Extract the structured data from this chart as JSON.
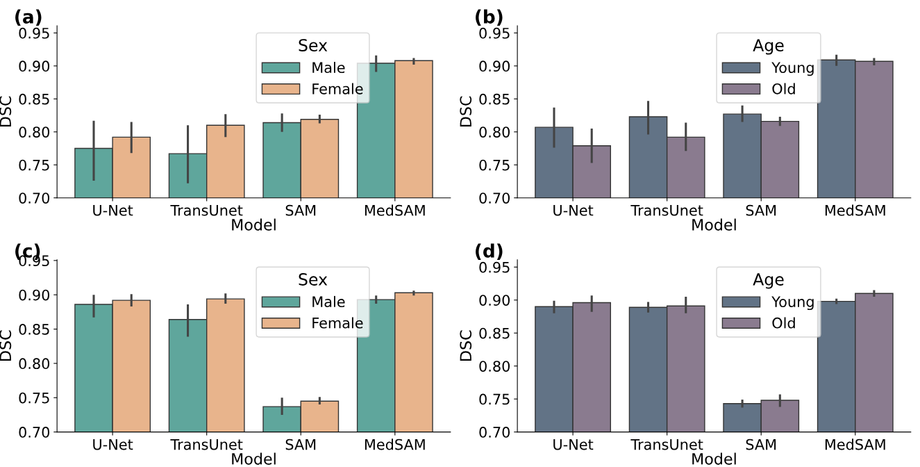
{
  "chart_data": [
    {
      "type": "bar",
      "title": "(a)",
      "xlabel": "Model",
      "ylabel": "DSC",
      "legend_title": "Sex",
      "legend": "top",
      "categories": [
        "U-Net",
        "TransUnet",
        "SAM",
        "MedSAM"
      ],
      "ylim": [
        0.7,
        0.961
      ],
      "yticks": [
        {
          "value": 0.7,
          "label": "0.70"
        },
        {
          "value": 0.75,
          "label": "0.75"
        },
        {
          "value": 0.8,
          "label": "0.80"
        },
        {
          "value": 0.85,
          "label": "0.85"
        },
        {
          "value": 0.9,
          "label": "0.90"
        },
        {
          "value": 0.95,
          "label": "0.95"
        }
      ],
      "series": [
        {
          "name": "Male",
          "color": "#5fa69c",
          "values": [
            0.775,
            0.767,
            0.814,
            0.904
          ],
          "errors": [
            [
              0.726,
              0.817
            ],
            [
              0.722,
              0.81
            ],
            [
              0.8,
              0.828
            ],
            [
              0.891,
              0.916
            ]
          ]
        },
        {
          "name": "Female",
          "color": "#e8b48c",
          "values": [
            0.792,
            0.81,
            0.819,
            0.908
          ],
          "errors": [
            [
              0.768,
              0.815
            ],
            [
              0.792,
              0.827
            ],
            [
              0.813,
              0.826
            ],
            [
              0.902,
              0.912
            ]
          ]
        }
      ]
    },
    {
      "type": "bar",
      "title": "(b)",
      "xlabel": "Model",
      "ylabel": "DSC",
      "legend_title": "Age",
      "legend": "top",
      "categories": [
        "U-Net",
        "TransUnet",
        "SAM",
        "MedSAM"
      ],
      "ylim": [
        0.7,
        0.961
      ],
      "yticks": [
        {
          "value": 0.7,
          "label": "0.70"
        },
        {
          "value": 0.75,
          "label": "0.75"
        },
        {
          "value": 0.8,
          "label": "0.80"
        },
        {
          "value": 0.85,
          "label": "0.85"
        },
        {
          "value": 0.9,
          "label": "0.90"
        },
        {
          "value": 0.95,
          "label": "0.95"
        }
      ],
      "series": [
        {
          "name": "Young",
          "color": "#627386",
          "values": [
            0.807,
            0.823,
            0.827,
            0.909
          ],
          "errors": [
            [
              0.776,
              0.837
            ],
            [
              0.796,
              0.847
            ],
            [
              0.815,
              0.84
            ],
            [
              0.9,
              0.917
            ]
          ]
        },
        {
          "name": "Old",
          "color": "#8a7b8f",
          "values": [
            0.779,
            0.792,
            0.816,
            0.907
          ],
          "errors": [
            [
              0.753,
              0.805
            ],
            [
              0.771,
              0.814
            ],
            [
              0.809,
              0.823
            ],
            [
              0.901,
              0.912
            ]
          ]
        }
      ]
    },
    {
      "type": "bar",
      "title": "(c)",
      "xlabel": "Model",
      "ylabel": "DSC",
      "legend_title": "Sex",
      "legend": "top",
      "categories": [
        "U-Net",
        "TransUnet",
        "SAM",
        "MedSAM"
      ],
      "ylim": [
        0.7,
        0.951
      ],
      "yticks": [
        {
          "value": 0.7,
          "label": "0.70"
        },
        {
          "value": 0.75,
          "label": "0.75"
        },
        {
          "value": 0.8,
          "label": "0.80"
        },
        {
          "value": 0.85,
          "label": "0.85"
        },
        {
          "value": 0.9,
          "label": "0.90"
        },
        {
          "value": 0.95,
          "label": "0.95"
        }
      ],
      "series": [
        {
          "name": "Male",
          "color": "#5fa69c",
          "values": [
            0.886,
            0.864,
            0.737,
            0.893
          ],
          "errors": [
            [
              0.867,
              0.9
            ],
            [
              0.839,
              0.886
            ],
            [
              0.725,
              0.75
            ],
            [
              0.887,
              0.899
            ]
          ]
        },
        {
          "name": "Female",
          "color": "#e8b48c",
          "values": [
            0.892,
            0.894,
            0.745,
            0.903
          ],
          "errors": [
            [
              0.883,
              0.901
            ],
            [
              0.887,
              0.902
            ],
            [
              0.74,
              0.751
            ],
            [
              0.899,
              0.906
            ]
          ]
        }
      ]
    },
    {
      "type": "bar",
      "title": "(d)",
      "xlabel": "Model",
      "ylabel": "DSC",
      "legend_title": "Age",
      "legend": "top",
      "categories": [
        "U-Net",
        "TransUnet",
        "SAM",
        "MedSAM"
      ],
      "ylim": [
        0.7,
        0.961
      ],
      "yticks": [
        {
          "value": 0.7,
          "label": "0.70"
        },
        {
          "value": 0.75,
          "label": "0.75"
        },
        {
          "value": 0.8,
          "label": "0.80"
        },
        {
          "value": 0.85,
          "label": "0.85"
        },
        {
          "value": 0.9,
          "label": "0.90"
        },
        {
          "value": 0.95,
          "label": "0.95"
        }
      ],
      "series": [
        {
          "name": "Young",
          "color": "#627386",
          "values": [
            0.89,
            0.889,
            0.743,
            0.898
          ],
          "errors": [
            [
              0.88,
              0.899
            ],
            [
              0.881,
              0.897
            ],
            [
              0.737,
              0.749
            ],
            [
              0.894,
              0.902
            ]
          ]
        },
        {
          "name": "Old",
          "color": "#8a7b8f",
          "values": [
            0.896,
            0.891,
            0.748,
            0.91
          ],
          "errors": [
            [
              0.882,
              0.907
            ],
            [
              0.88,
              0.905
            ],
            [
              0.738,
              0.757
            ],
            [
              0.905,
              0.915
            ]
          ]
        }
      ]
    }
  ]
}
